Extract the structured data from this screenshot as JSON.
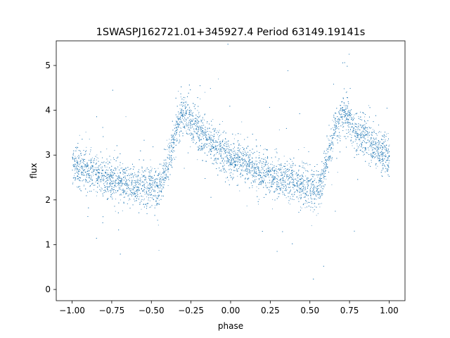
{
  "chart_data": {
    "type": "scatter",
    "title": "1SWASPJ162721.01+345927.4 Period 63149.19141s",
    "xlabel": "phase",
    "ylabel": "flux",
    "xlim": [
      -1.1,
      1.1
    ],
    "ylim": [
      -0.25,
      5.55
    ],
    "xticks": [
      -1.0,
      -0.75,
      -0.5,
      -0.25,
      0.0,
      0.25,
      0.5,
      0.75,
      1.0
    ],
    "xtick_labels": [
      "−1.00",
      "−0.75",
      "−0.50",
      "−0.25",
      "0.00",
      "0.25",
      "0.50",
      "0.75",
      "1.00"
    ],
    "yticks": [
      0,
      1,
      2,
      3,
      4,
      5
    ],
    "ytick_labels": [
      "0",
      "1",
      "2",
      "3",
      "4",
      "5"
    ],
    "grid": false,
    "legend": "none",
    "series": [
      {
        "color": "#1f77b4",
        "phase_range": [
          -1.0,
          1.0
        ],
        "light_curve": {
          "x": [
            -1.0,
            -0.9,
            -0.8,
            -0.7,
            -0.6,
            -0.5,
            -0.46,
            -0.44,
            -0.4,
            -0.35,
            -0.32,
            -0.29,
            -0.27,
            -0.25,
            -0.2,
            -0.15,
            -0.1,
            -0.05,
            0.0,
            0.1,
            0.2,
            0.3,
            0.4,
            0.5,
            0.54,
            0.56,
            0.6,
            0.65,
            0.68,
            0.71,
            0.73,
            0.75,
            0.8,
            0.85,
            0.9,
            0.95,
            1.0
          ],
          "y": [
            2.8,
            2.65,
            2.5,
            2.42,
            2.35,
            2.3,
            2.25,
            2.3,
            2.8,
            3.5,
            3.8,
            3.95,
            3.85,
            3.75,
            3.55,
            3.35,
            3.2,
            3.05,
            2.95,
            2.8,
            2.6,
            2.5,
            2.4,
            2.3,
            2.25,
            2.3,
            2.8,
            3.5,
            3.8,
            3.95,
            3.85,
            3.75,
            3.55,
            3.35,
            3.2,
            3.05,
            2.95
          ]
        },
        "scatter_sd": 0.22
      }
    ]
  }
}
